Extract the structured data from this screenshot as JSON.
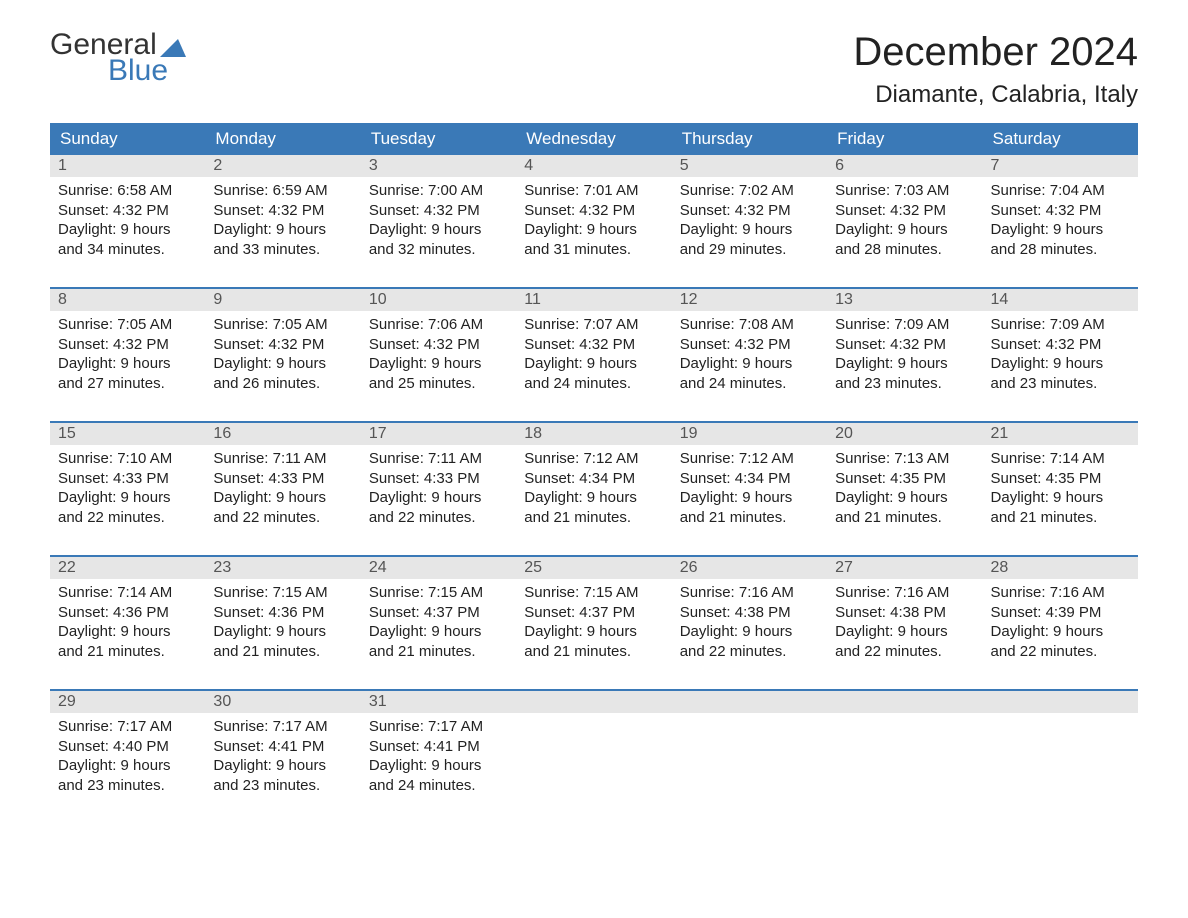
{
  "brand": {
    "word1": "General",
    "word2": "Blue"
  },
  "title": "December 2024",
  "location": "Diamante, Calabria, Italy",
  "colors": {
    "accent": "#3a79b7",
    "headerText": "#ffffff",
    "dayNumBg": "#e6e6e6",
    "bodyText": "#222222",
    "background": "#ffffff"
  },
  "daysOfWeek": [
    "Sunday",
    "Monday",
    "Tuesday",
    "Wednesday",
    "Thursday",
    "Friday",
    "Saturday"
  ],
  "weeks": [
    [
      {
        "num": "1",
        "sunrise": "Sunrise: 6:58 AM",
        "sunset": "Sunset: 4:32 PM",
        "day1": "Daylight: 9 hours",
        "day2": "and 34 minutes."
      },
      {
        "num": "2",
        "sunrise": "Sunrise: 6:59 AM",
        "sunset": "Sunset: 4:32 PM",
        "day1": "Daylight: 9 hours",
        "day2": "and 33 minutes."
      },
      {
        "num": "3",
        "sunrise": "Sunrise: 7:00 AM",
        "sunset": "Sunset: 4:32 PM",
        "day1": "Daylight: 9 hours",
        "day2": "and 32 minutes."
      },
      {
        "num": "4",
        "sunrise": "Sunrise: 7:01 AM",
        "sunset": "Sunset: 4:32 PM",
        "day1": "Daylight: 9 hours",
        "day2": "and 31 minutes."
      },
      {
        "num": "5",
        "sunrise": "Sunrise: 7:02 AM",
        "sunset": "Sunset: 4:32 PM",
        "day1": "Daylight: 9 hours",
        "day2": "and 29 minutes."
      },
      {
        "num": "6",
        "sunrise": "Sunrise: 7:03 AM",
        "sunset": "Sunset: 4:32 PM",
        "day1": "Daylight: 9 hours",
        "day2": "and 28 minutes."
      },
      {
        "num": "7",
        "sunrise": "Sunrise: 7:04 AM",
        "sunset": "Sunset: 4:32 PM",
        "day1": "Daylight: 9 hours",
        "day2": "and 28 minutes."
      }
    ],
    [
      {
        "num": "8",
        "sunrise": "Sunrise: 7:05 AM",
        "sunset": "Sunset: 4:32 PM",
        "day1": "Daylight: 9 hours",
        "day2": "and 27 minutes."
      },
      {
        "num": "9",
        "sunrise": "Sunrise: 7:05 AM",
        "sunset": "Sunset: 4:32 PM",
        "day1": "Daylight: 9 hours",
        "day2": "and 26 minutes."
      },
      {
        "num": "10",
        "sunrise": "Sunrise: 7:06 AM",
        "sunset": "Sunset: 4:32 PM",
        "day1": "Daylight: 9 hours",
        "day2": "and 25 minutes."
      },
      {
        "num": "11",
        "sunrise": "Sunrise: 7:07 AM",
        "sunset": "Sunset: 4:32 PM",
        "day1": "Daylight: 9 hours",
        "day2": "and 24 minutes."
      },
      {
        "num": "12",
        "sunrise": "Sunrise: 7:08 AM",
        "sunset": "Sunset: 4:32 PM",
        "day1": "Daylight: 9 hours",
        "day2": "and 24 minutes."
      },
      {
        "num": "13",
        "sunrise": "Sunrise: 7:09 AM",
        "sunset": "Sunset: 4:32 PM",
        "day1": "Daylight: 9 hours",
        "day2": "and 23 minutes."
      },
      {
        "num": "14",
        "sunrise": "Sunrise: 7:09 AM",
        "sunset": "Sunset: 4:32 PM",
        "day1": "Daylight: 9 hours",
        "day2": "and 23 minutes."
      }
    ],
    [
      {
        "num": "15",
        "sunrise": "Sunrise: 7:10 AM",
        "sunset": "Sunset: 4:33 PM",
        "day1": "Daylight: 9 hours",
        "day2": "and 22 minutes."
      },
      {
        "num": "16",
        "sunrise": "Sunrise: 7:11 AM",
        "sunset": "Sunset: 4:33 PM",
        "day1": "Daylight: 9 hours",
        "day2": "and 22 minutes."
      },
      {
        "num": "17",
        "sunrise": "Sunrise: 7:11 AM",
        "sunset": "Sunset: 4:33 PM",
        "day1": "Daylight: 9 hours",
        "day2": "and 22 minutes."
      },
      {
        "num": "18",
        "sunrise": "Sunrise: 7:12 AM",
        "sunset": "Sunset: 4:34 PM",
        "day1": "Daylight: 9 hours",
        "day2": "and 21 minutes."
      },
      {
        "num": "19",
        "sunrise": "Sunrise: 7:12 AM",
        "sunset": "Sunset: 4:34 PM",
        "day1": "Daylight: 9 hours",
        "day2": "and 21 minutes."
      },
      {
        "num": "20",
        "sunrise": "Sunrise: 7:13 AM",
        "sunset": "Sunset: 4:35 PM",
        "day1": "Daylight: 9 hours",
        "day2": "and 21 minutes."
      },
      {
        "num": "21",
        "sunrise": "Sunrise: 7:14 AM",
        "sunset": "Sunset: 4:35 PM",
        "day1": "Daylight: 9 hours",
        "day2": "and 21 minutes."
      }
    ],
    [
      {
        "num": "22",
        "sunrise": "Sunrise: 7:14 AM",
        "sunset": "Sunset: 4:36 PM",
        "day1": "Daylight: 9 hours",
        "day2": "and 21 minutes."
      },
      {
        "num": "23",
        "sunrise": "Sunrise: 7:15 AM",
        "sunset": "Sunset: 4:36 PM",
        "day1": "Daylight: 9 hours",
        "day2": "and 21 minutes."
      },
      {
        "num": "24",
        "sunrise": "Sunrise: 7:15 AM",
        "sunset": "Sunset: 4:37 PM",
        "day1": "Daylight: 9 hours",
        "day2": "and 21 minutes."
      },
      {
        "num": "25",
        "sunrise": "Sunrise: 7:15 AM",
        "sunset": "Sunset: 4:37 PM",
        "day1": "Daylight: 9 hours",
        "day2": "and 21 minutes."
      },
      {
        "num": "26",
        "sunrise": "Sunrise: 7:16 AM",
        "sunset": "Sunset: 4:38 PM",
        "day1": "Daylight: 9 hours",
        "day2": "and 22 minutes."
      },
      {
        "num": "27",
        "sunrise": "Sunrise: 7:16 AM",
        "sunset": "Sunset: 4:38 PM",
        "day1": "Daylight: 9 hours",
        "day2": "and 22 minutes."
      },
      {
        "num": "28",
        "sunrise": "Sunrise: 7:16 AM",
        "sunset": "Sunset: 4:39 PM",
        "day1": "Daylight: 9 hours",
        "day2": "and 22 minutes."
      }
    ],
    [
      {
        "num": "29",
        "sunrise": "Sunrise: 7:17 AM",
        "sunset": "Sunset: 4:40 PM",
        "day1": "Daylight: 9 hours",
        "day2": "and 23 minutes."
      },
      {
        "num": "30",
        "sunrise": "Sunrise: 7:17 AM",
        "sunset": "Sunset: 4:41 PM",
        "day1": "Daylight: 9 hours",
        "day2": "and 23 minutes."
      },
      {
        "num": "31",
        "sunrise": "Sunrise: 7:17 AM",
        "sunset": "Sunset: 4:41 PM",
        "day1": "Daylight: 9 hours",
        "day2": "and 24 minutes."
      },
      {
        "empty": true
      },
      {
        "empty": true
      },
      {
        "empty": true
      },
      {
        "empty": true
      }
    ]
  ]
}
